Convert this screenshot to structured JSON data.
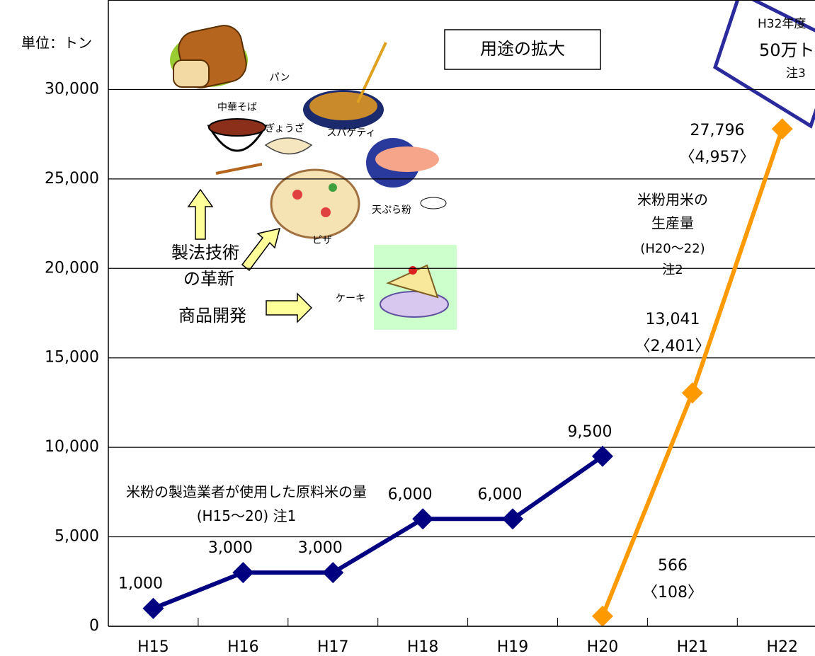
{
  "chart_data": {
    "type": "line",
    "y_unit_label": "単位：トン",
    "categories": [
      "H15",
      "H16",
      "H17",
      "H18",
      "H19",
      "H20",
      "H21",
      "H22"
    ],
    "ylim": [
      0,
      35000
    ],
    "yticks": [
      0,
      {
        "value": 5000,
        "label": "5,000"
      },
      {
        "value": 10000,
        "label": "10,000"
      },
      {
        "value": 15000,
        "label": "15,000"
      },
      {
        "value": 20000,
        "label": "20,000"
      },
      {
        "value": 25000,
        "label": "25,000"
      },
      {
        "value": 30000,
        "label": "30,000"
      }
    ],
    "grid": true,
    "series": [
      {
        "name": "米粉の製造業者が使用した原料米の量(H15～20) 注1",
        "color": "#000080",
        "values": [
          1000,
          3000,
          3000,
          6000,
          6000,
          9500,
          null,
          null
        ],
        "value_labels": [
          "1,000",
          "3,000",
          "3,000",
          "6,000",
          "6,000",
          "9,500",
          null,
          null
        ]
      },
      {
        "name": "米粉用米の",
        "name_cont": "生産量",
        "period_note": "(H20～22)",
        "note": "注2",
        "color": "#ff9900",
        "values": [
          null,
          null,
          null,
          null,
          null,
          566,
          13041,
          27796
        ],
        "value_labels": [
          null,
          null,
          null,
          null,
          null,
          "566",
          "13,041",
          "27,796"
        ],
        "value_sublabels": [
          null,
          null,
          null,
          null,
          null,
          "〈108〉",
          "〈2,401〉",
          "〈4,957〉"
        ]
      }
    ],
    "annotations": {
      "box": "用途の拡大",
      "innovation": [
        "製法技術",
        "の革新"
      ],
      "development": "商品開発",
      "foods": [
        "パン",
        "中華そば",
        "ぎょうざ",
        "スパゲティ",
        "天ぷら粉",
        "ピザ",
        "ケーキ"
      ],
      "target": [
        "H32年度",
        "50万ト",
        "注3"
      ]
    }
  }
}
